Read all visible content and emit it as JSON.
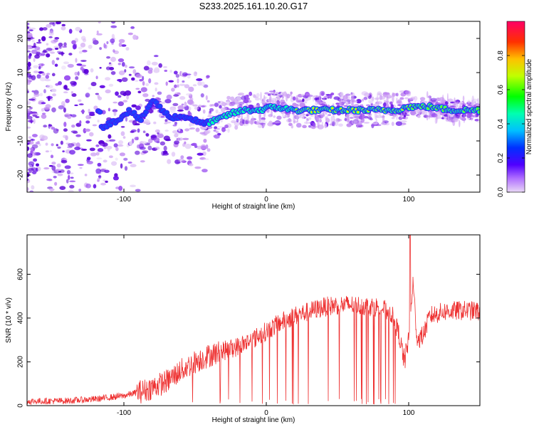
{
  "title": "S233.2025.161.10.20.G17",
  "chart_data": [
    {
      "type": "heatmap",
      "xlabel": "Height of straight line (km)",
      "ylabel": "Frequency (Hz)",
      "xlim": [
        -168,
        150
      ],
      "ylim": [
        -25,
        25
      ],
      "x_ticks": [
        -100,
        0,
        100
      ],
      "y_ticks": [
        -20,
        -10,
        0,
        10,
        20
      ],
      "colorbar": {
        "label": "Normalized spectral amplitude",
        "range": [
          0,
          1
        ],
        "ticks": [
          0.0,
          0.2,
          0.4,
          0.6,
          0.8
        ]
      },
      "ridge": [
        {
          "x": -116,
          "y": -6
        },
        {
          "x": -105,
          "y": -4
        },
        {
          "x": -96,
          "y": -1
        },
        {
          "x": -88,
          "y": -4
        },
        {
          "x": -80,
          "y": 2
        },
        {
          "x": -68,
          "y": -3
        },
        {
          "x": -55,
          "y": -3
        },
        {
          "x": -45,
          "y": -5
        },
        {
          "x": -35,
          "y": -4
        },
        {
          "x": -25,
          "y": -2
        },
        {
          "x": -15,
          "y": -1
        },
        {
          "x": -5,
          "y": -1
        },
        {
          "x": 5,
          "y": 0
        },
        {
          "x": 20,
          "y": -1
        },
        {
          "x": 40,
          "y": -1
        },
        {
          "x": 60,
          "y": -1
        },
        {
          "x": 78,
          "y": -1
        },
        {
          "x": 90,
          "y": -1
        },
        {
          "x": 100,
          "y": 0
        },
        {
          "x": 115,
          "y": 0
        },
        {
          "x": 130,
          "y": -1
        },
        {
          "x": 150,
          "y": -1
        }
      ]
    },
    {
      "type": "line",
      "xlabel": "Height of straight line (km)",
      "ylabel": "SNR (10 * v/v)",
      "xlim": [
        -168,
        150
      ],
      "ylim": [
        0,
        780
      ],
      "x_ticks": [
        -100,
        0,
        100
      ],
      "y_ticks": [
        0,
        200,
        400,
        600
      ],
      "color": "#ee3333",
      "envelope": [
        {
          "x": -168,
          "y": 20
        },
        {
          "x": -140,
          "y": 22
        },
        {
          "x": -120,
          "y": 30
        },
        {
          "x": -100,
          "y": 45
        },
        {
          "x": -85,
          "y": 70
        },
        {
          "x": -70,
          "y": 110
        },
        {
          "x": -60,
          "y": 160
        },
        {
          "x": -50,
          "y": 200
        },
        {
          "x": -40,
          "y": 230
        },
        {
          "x": -30,
          "y": 250
        },
        {
          "x": -20,
          "y": 270
        },
        {
          "x": -10,
          "y": 300
        },
        {
          "x": 0,
          "y": 340
        },
        {
          "x": 10,
          "y": 380
        },
        {
          "x": 20,
          "y": 410
        },
        {
          "x": 30,
          "y": 430
        },
        {
          "x": 40,
          "y": 450
        },
        {
          "x": 50,
          "y": 460
        },
        {
          "x": 60,
          "y": 460
        },
        {
          "x": 70,
          "y": 455
        },
        {
          "x": 80,
          "y": 450
        },
        {
          "x": 88,
          "y": 420
        },
        {
          "x": 93,
          "y": 330
        },
        {
          "x": 97,
          "y": 200
        },
        {
          "x": 100,
          "y": 300
        },
        {
          "x": 103,
          "y": 560
        },
        {
          "x": 106,
          "y": 300
        },
        {
          "x": 110,
          "y": 320
        },
        {
          "x": 115,
          "y": 410
        },
        {
          "x": 125,
          "y": 430
        },
        {
          "x": 140,
          "y": 435
        },
        {
          "x": 150,
          "y": 430
        }
      ],
      "peak": {
        "x": 101,
        "y": 780
      }
    }
  ]
}
